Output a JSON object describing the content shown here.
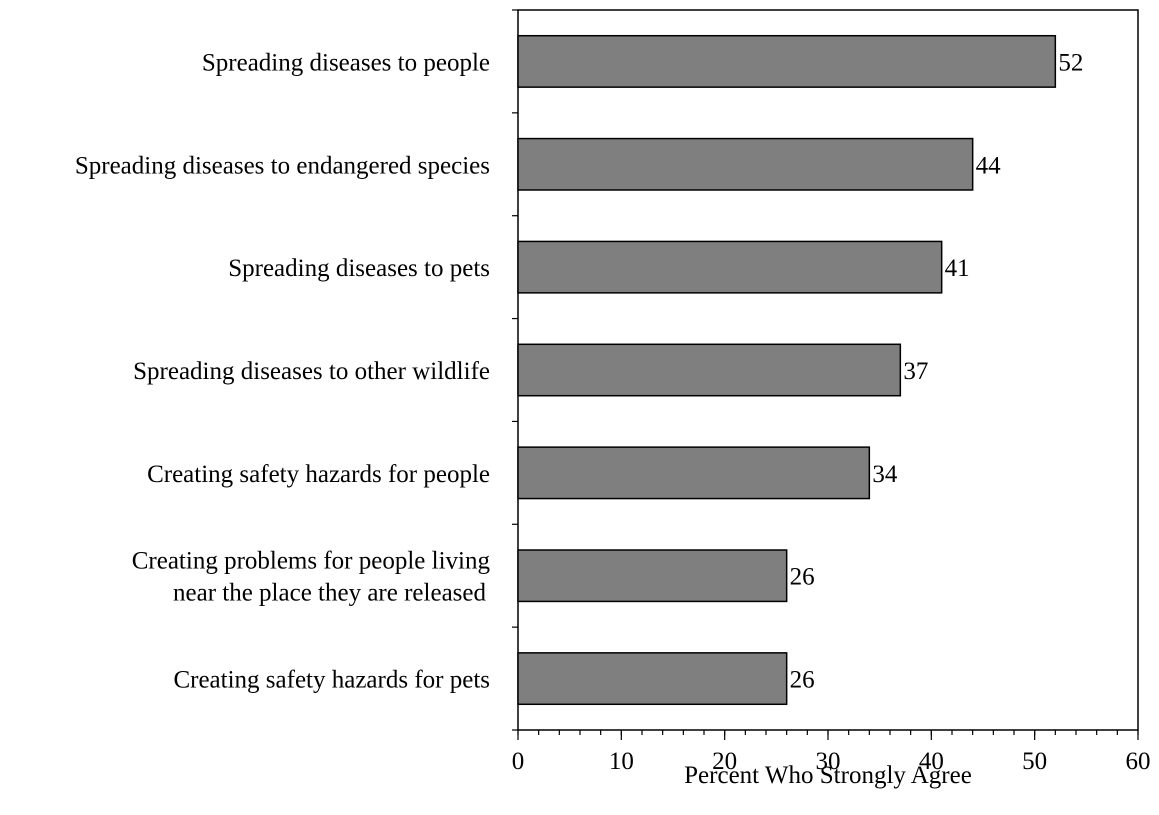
{
  "chart_data": {
    "type": "bar",
    "orientation": "horizontal",
    "categories": [
      [
        "Spreading diseases to people"
      ],
      [
        "Spreading diseases to endangered species"
      ],
      [
        "Spreading diseases to pets"
      ],
      [
        "Spreading diseases to other wildlife"
      ],
      [
        "Creating safety hazards for people"
      ],
      [
        "Creating problems for people living",
        "near the place they are released"
      ],
      [
        "Creating safety hazards for pets"
      ]
    ],
    "values": [
      52,
      44,
      41,
      37,
      34,
      26,
      26
    ],
    "data_labels": [
      "52",
      "44",
      "41",
      "37",
      "34",
      "26",
      "26"
    ],
    "xlabel": "Percent Who Strongly Agree",
    "xlim": [
      0,
      60
    ],
    "xticks": [
      0,
      10,
      20,
      30,
      40,
      50,
      60
    ],
    "xtick_labels": [
      "0",
      "10",
      "20",
      "30",
      "40",
      "50",
      "60"
    ],
    "minor_tick_step": 2,
    "grid": false,
    "legend": "none",
    "colors": {
      "bar_fill": "#7f7f7f",
      "bar_stroke": "#000000",
      "axis": "#000000",
      "text": "#000000",
      "background": "#ffffff"
    }
  }
}
